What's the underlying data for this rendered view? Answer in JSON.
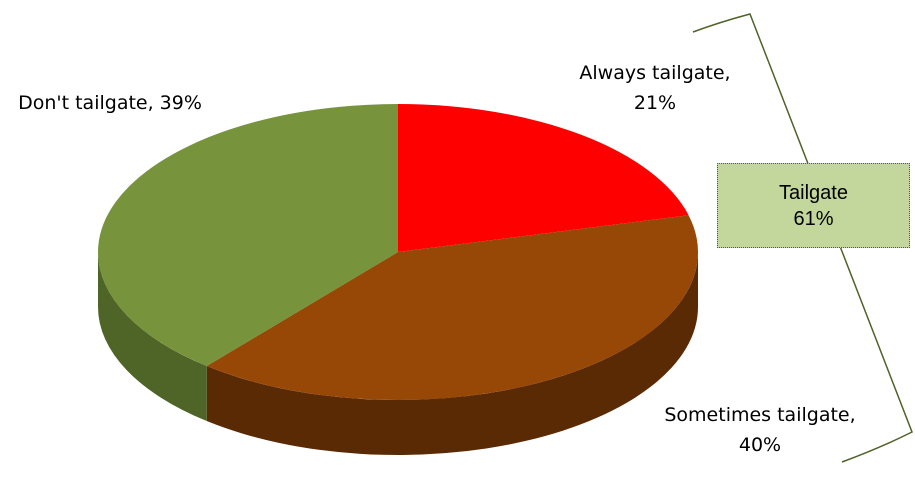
{
  "chart_data": {
    "type": "pie",
    "style": "3d",
    "categories": [
      "Always tailgate",
      "Sometimes tailgate",
      "Don't tailgate"
    ],
    "values": [
      21,
      40,
      39
    ],
    "value_labels": [
      "Always tailgate, 21%",
      "Sometimes tailgate, 40%",
      "Don't tailgate, 39%"
    ],
    "colors": [
      "#ff0000",
      "#974706",
      "#77933c"
    ],
    "side_colors": [
      "#a00000",
      "#5a2a04",
      "#4f6427"
    ],
    "annotation": {
      "title": "Tailgate",
      "text": "61%"
    }
  }
}
